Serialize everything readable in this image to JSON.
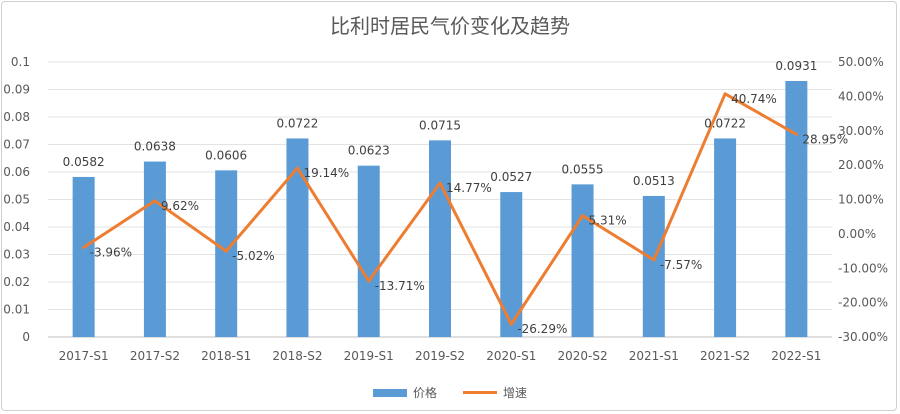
{
  "chart_data": {
    "type": "bar",
    "title": "比利时居民气价变化及趋势",
    "categories": [
      "2017-S1",
      "2017-S2",
      "2018-S1",
      "2018-S2",
      "2019-S1",
      "2019-S2",
      "2020-S1",
      "2020-S2",
      "2021-S1",
      "2021-S2",
      "2022-S1"
    ],
    "series": [
      {
        "name": "价格",
        "type": "bar",
        "axis": "left",
        "color": "#5b9bd5",
        "values": [
          0.0582,
          0.0638,
          0.0606,
          0.0722,
          0.0623,
          0.0715,
          0.0527,
          0.0555,
          0.0513,
          0.0722,
          0.0931
        ],
        "labels": [
          "0.0582",
          "0.0638",
          "0.0606",
          "0.0722",
          "0.0623",
          "0.0715",
          "0.0527",
          "0.0555",
          "0.0513",
          "0.0722",
          "0.0931"
        ]
      },
      {
        "name": "增速",
        "type": "line",
        "axis": "right",
        "color": "#ed7d31",
        "values": [
          -3.96,
          9.62,
          -5.02,
          19.14,
          -13.71,
          14.77,
          -26.29,
          5.31,
          -7.57,
          40.74,
          28.95
        ],
        "labels": [
          "-3.96%",
          "9.62%",
          "-5.02%",
          "19.14%",
          "-13.71%",
          "14.77%",
          "-26.29%",
          "5.31%",
          "-7.57%",
          "40.74%",
          "28.95%"
        ]
      }
    ],
    "y_left": {
      "ylim": [
        0,
        0.1
      ],
      "ticks": [
        0,
        0.01,
        0.02,
        0.03,
        0.04,
        0.05,
        0.06,
        0.07,
        0.08,
        0.09,
        0.1
      ],
      "tick_labels": [
        "0",
        "0.01",
        "0.02",
        "0.03",
        "0.04",
        "0.05",
        "0.06",
        "0.07",
        "0.08",
        "0.09",
        "0.1"
      ]
    },
    "y_right": {
      "ylim": [
        -30,
        50
      ],
      "ticks": [
        -30,
        -20,
        -10,
        0,
        10,
        20,
        30,
        40,
        50
      ],
      "tick_labels": [
        "-30.00%",
        "-20.00%",
        "-10.00%",
        "0.00%",
        "10.00%",
        "20.00%",
        "30.00%",
        "40.00%",
        "50.00%"
      ]
    },
    "grid": true,
    "legend": "bottom"
  }
}
